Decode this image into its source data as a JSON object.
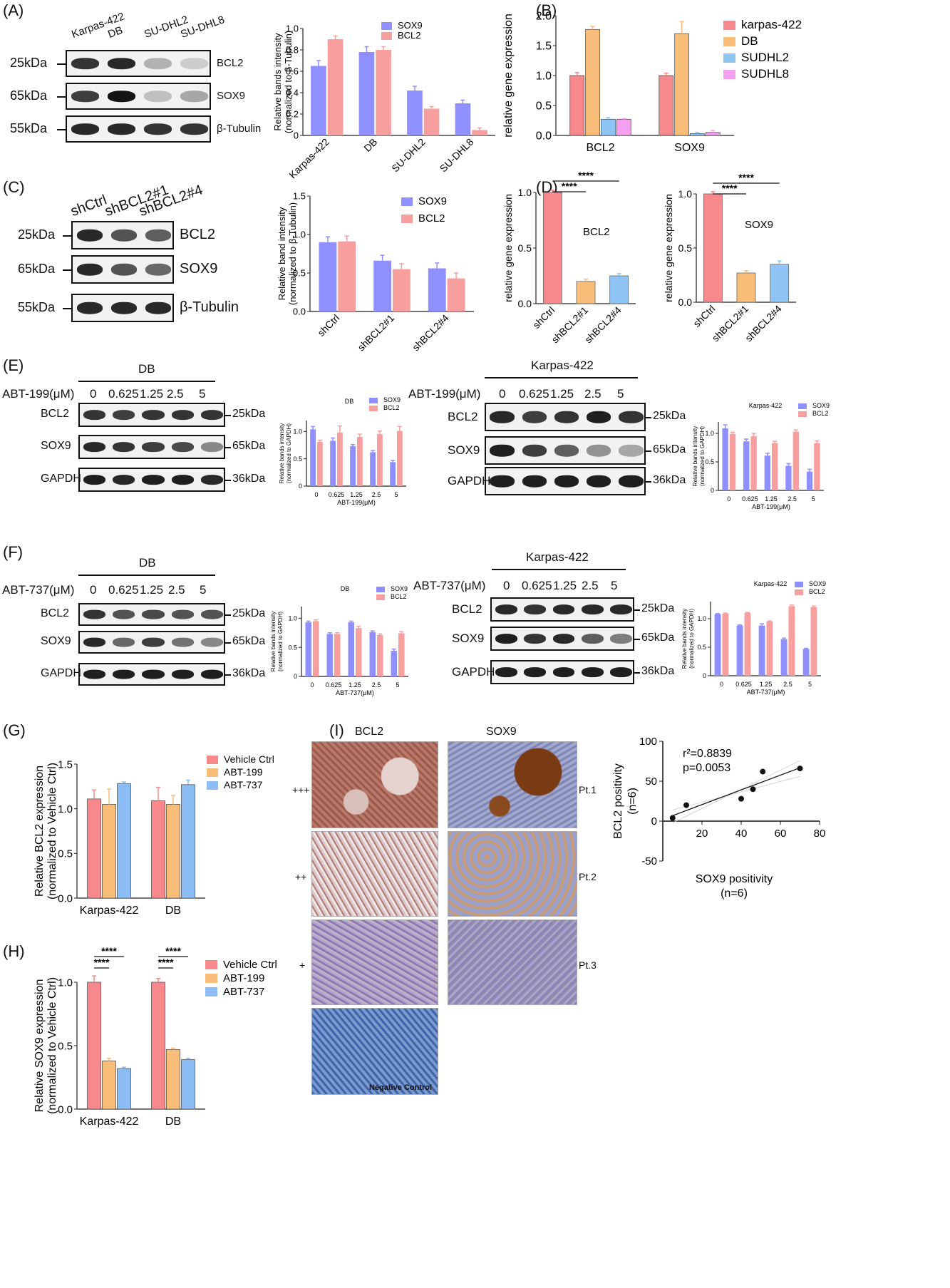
{
  "panels": {
    "A": {
      "letter": "(A)",
      "lanes": [
        "Karpas-422",
        "DB",
        "SU-DHL2",
        "SU-DHL8"
      ],
      "blots": [
        {
          "size": "25kDa",
          "protein": "BCL2",
          "intensity": [
            0.85,
            0.9,
            0.25,
            0.12
          ]
        },
        {
          "size": "65kDa",
          "protein": "SOX9",
          "intensity": [
            0.8,
            1.0,
            0.18,
            0.3
          ]
        },
        {
          "size": "55kDa",
          "protein": "β-Tubulin",
          "intensity": [
            0.9,
            0.9,
            0.85,
            0.85
          ]
        }
      ]
    },
    "B": {
      "letter": "(B)"
    },
    "C": {
      "letter": "(C)",
      "lanes": [
        "shCtrl",
        "shBCL2#1",
        "shBCL2#4"
      ],
      "blots": [
        {
          "size": "25kDa",
          "protein": "BCL2",
          "intensity": [
            0.9,
            0.7,
            0.65
          ]
        },
        {
          "size": "65kDa",
          "protein": "SOX9",
          "intensity": [
            0.9,
            0.7,
            0.6
          ]
        },
        {
          "size": "55kDa",
          "protein": "β-Tubulin",
          "intensity": [
            0.9,
            0.9,
            0.9
          ]
        }
      ]
    },
    "D": {
      "letter": "(D)"
    },
    "E": {
      "letter": "(E)",
      "left": {
        "cell": "DB",
        "drug": "ABT-199(μM)",
        "doses": [
          "0",
          "0.625",
          "1.25",
          "2.5",
          "5"
        ],
        "blots": [
          {
            "size": "25kDa",
            "protein": "BCL2",
            "intensity": [
              0.85,
              0.8,
              0.85,
              0.85,
              0.85
            ]
          },
          {
            "size": "65kDa",
            "protein": "SOX9",
            "intensity": [
              0.9,
              0.85,
              0.8,
              0.75,
              0.45
            ]
          },
          {
            "size": "36kDa",
            "protein": "GAPDH",
            "intensity": [
              0.95,
              0.9,
              0.95,
              0.95,
              0.9
            ]
          }
        ]
      },
      "right": {
        "cell": "Karpas-422",
        "drug": "ABT-199(μM)",
        "doses": [
          "0",
          "0.625",
          "1.25",
          "2.5",
          "5"
        ],
        "blots": [
          {
            "size": "25kDa",
            "protein": "BCL2",
            "intensity": [
              0.9,
              0.8,
              0.85,
              0.95,
              0.85
            ]
          },
          {
            "size": "65kDa",
            "protein": "SOX9",
            "intensity": [
              0.95,
              0.8,
              0.65,
              0.4,
              0.3
            ]
          },
          {
            "size": "36kDa",
            "protein": "GAPDH",
            "intensity": [
              0.95,
              0.95,
              0.95,
              0.95,
              0.95
            ]
          }
        ]
      }
    },
    "F": {
      "letter": "(F)",
      "left": {
        "cell": "DB",
        "drug": "ABT-737(μM)",
        "doses": [
          "0",
          "0.625",
          "1.25",
          "2.5",
          "5"
        ],
        "blots": [
          {
            "size": "25kDa",
            "protein": "BCL2",
            "intensity": [
              0.85,
              0.7,
              0.75,
              0.7,
              0.7
            ]
          },
          {
            "size": "65kDa",
            "protein": "SOX9",
            "intensity": [
              0.9,
              0.6,
              0.8,
              0.55,
              0.45
            ]
          },
          {
            "size": "36kDa",
            "protein": "GAPDH",
            "intensity": [
              0.95,
              0.95,
              0.95,
              0.95,
              0.95
            ]
          }
        ]
      },
      "right": {
        "cell": "Karpas-422",
        "drug": "ABT-737(μM)",
        "doses": [
          "0",
          "0.625",
          "1.25",
          "2.5",
          "5"
        ],
        "blots": [
          {
            "size": "25kDa",
            "protein": "BCL2",
            "intensity": [
              0.9,
              0.85,
              0.9,
              0.9,
              0.9
            ]
          },
          {
            "size": "65kDa",
            "protein": "SOX9",
            "intensity": [
              0.95,
              0.85,
              0.9,
              0.65,
              0.5
            ]
          },
          {
            "size": "36kDa",
            "protein": "GAPDH",
            "intensity": [
              0.95,
              0.95,
              0.95,
              0.95,
              0.95
            ]
          }
        ]
      }
    },
    "G": {
      "letter": "(G)"
    },
    "H": {
      "letter": "(H)"
    },
    "I": {
      "letter": "(I)",
      "columns": [
        "BCL2",
        "SOX9"
      ],
      "grades": [
        "+++",
        "++",
        "+"
      ],
      "patients": [
        "Pt.1",
        "Pt.2",
        "Pt.3"
      ],
      "negative": "Negative Control"
    }
  },
  "chart_data": [
    {
      "id": "A",
      "type": "bar",
      "categories": [
        "Karpas-422",
        "DB",
        "SU-DHL2",
        "SU-DHL8"
      ],
      "series": [
        {
          "name": "SOX9",
          "values": [
            0.65,
            0.78,
            0.42,
            0.3
          ],
          "err": [
            0.05,
            0.05,
            0.04,
            0.03
          ]
        },
        {
          "name": "BCL2",
          "values": [
            0.9,
            0.8,
            0.25,
            0.05
          ],
          "err": [
            0.03,
            0.03,
            0.02,
            0.02
          ]
        }
      ],
      "ylabel": "Relative bands intensity",
      "ylabel2": "(normalized to β-Tubulin)",
      "ylim": [
        0,
        1.0
      ],
      "yticks": [
        0,
        0.2,
        0.4,
        0.6,
        0.8,
        1.0
      ],
      "legend": "top-right"
    },
    {
      "id": "B",
      "type": "bar",
      "categories": [
        "BCL2",
        "SOX9"
      ],
      "series": [
        {
          "name": "karpas-422",
          "values": [
            1.0,
            1.0
          ],
          "err": [
            0.05,
            0.04
          ]
        },
        {
          "name": "DB",
          "values": [
            1.77,
            1.7
          ],
          "err": [
            0.05,
            0.2
          ]
        },
        {
          "name": "SUDHL2",
          "values": [
            0.27,
            0.03
          ],
          "err": [
            0.03,
            0.02
          ]
        },
        {
          "name": "SUDHL8",
          "values": [
            0.27,
            0.05
          ],
          "err": [
            0.01,
            0.03
          ]
        }
      ],
      "ylabel": "relative gene expression",
      "ylim": [
        0,
        2.0
      ],
      "yticks": [
        0.0,
        0.5,
        1.0,
        1.5,
        2.0
      ],
      "legend": "right"
    },
    {
      "id": "C",
      "type": "bar",
      "categories": [
        "shCtrl",
        "shBCL2#1",
        "shBCL2#4"
      ],
      "series": [
        {
          "name": "SOX9",
          "values": [
            0.9,
            0.66,
            0.56
          ],
          "err": [
            0.07,
            0.07,
            0.07
          ]
        },
        {
          "name": "BCL2",
          "values": [
            0.91,
            0.55,
            0.43
          ],
          "err": [
            0.07,
            0.07,
            0.07
          ]
        }
      ],
      "ylabel": "Relative band intensity",
      "ylabel2": "(normalized to β-Tubulin)",
      "ylim": [
        0,
        1.5
      ],
      "yticks": [
        0.0,
        0.5,
        1.0,
        1.5
      ],
      "legend": "top-right"
    },
    {
      "id": "D1",
      "type": "bar",
      "categories": [
        "shCtrl",
        "shBCL2#1",
        "shBCL2#4"
      ],
      "values": [
        1.0,
        0.2,
        0.25
      ],
      "err": [
        0.02,
        0.02,
        0.02
      ],
      "annotation": "BCL2",
      "ylabel": "relative gene expression",
      "ylim": [
        0,
        1.0
      ],
      "yticks": [
        0.0,
        0.5,
        1.0
      ],
      "sig": [
        "****",
        "****"
      ]
    },
    {
      "id": "D2",
      "type": "bar",
      "categories": [
        "shCtrl",
        "shBCL2#1",
        "shBCL2#4"
      ],
      "values": [
        1.0,
        0.27,
        0.35
      ],
      "err": [
        0.02,
        0.02,
        0.03
      ],
      "annotation": "SOX9",
      "ylabel": "relative gene expression",
      "ylim": [
        0,
        1.0
      ],
      "yticks": [
        0.0,
        0.5,
        1.0
      ],
      "sig": [
        "****",
        "****"
      ]
    },
    {
      "id": "E1",
      "type": "bar",
      "title": "DB",
      "categories": [
        "0",
        "0.625",
        "1.25",
        "2.5",
        "5"
      ],
      "series": [
        {
          "name": "SOX9",
          "values": [
            1.04,
            0.83,
            0.73,
            0.62,
            0.44
          ],
          "err": [
            0.05,
            0.05,
            0.03,
            0.03,
            0.03
          ]
        },
        {
          "name": "BCL2",
          "values": [
            0.81,
            0.98,
            0.9,
            0.95,
            1.01
          ],
          "err": [
            0.03,
            0.12,
            0.05,
            0.06,
            0.08
          ]
        }
      ],
      "xlabel": "ABT-199(μM)",
      "ylabel": "Relative bands intensity",
      "ylabel2": "(normalized to GAPDH)",
      "ylim": [
        0,
        1.2
      ],
      "yticks": [
        0,
        0.5,
        1.0
      ],
      "legend": "top-right"
    },
    {
      "id": "E2",
      "type": "bar",
      "title": "Karpas-422",
      "categories": [
        "0",
        "0.625",
        "1.25",
        "2.5",
        "5"
      ],
      "series": [
        {
          "name": "SOX9",
          "values": [
            1.09,
            0.86,
            0.61,
            0.43,
            0.33
          ],
          "err": [
            0.06,
            0.04,
            0.04,
            0.04,
            0.04
          ]
        },
        {
          "name": "BCL2",
          "values": [
            0.99,
            0.95,
            0.83,
            1.03,
            0.83
          ],
          "err": [
            0.03,
            0.05,
            0.03,
            0.03,
            0.04
          ]
        }
      ],
      "xlabel": "ABT-199(μM)",
      "ylabel": "Relative bands intensity",
      "ylabel2": "(normalized to GAPDH)",
      "ylim": [
        0,
        1.2
      ],
      "yticks": [
        0,
        0.5,
        1.0
      ],
      "legend": "top-right"
    },
    {
      "id": "F1",
      "type": "bar",
      "title": "DB",
      "categories": [
        "0",
        "0.625",
        "1.25",
        "2.5",
        "5"
      ],
      "series": [
        {
          "name": "SOX9",
          "values": [
            0.93,
            0.73,
            0.93,
            0.76,
            0.44
          ],
          "err": [
            0.02,
            0.02,
            0.02,
            0.02,
            0.03
          ]
        },
        {
          "name": "BCL2",
          "values": [
            0.95,
            0.73,
            0.83,
            0.71,
            0.74
          ],
          "err": [
            0.02,
            0.02,
            0.03,
            0.02,
            0.03
          ]
        }
      ],
      "xlabel": "ABT-737(μM)",
      "ylabel": "Relative bands intensity",
      "ylabel2": "(normalized to GAPDH)",
      "ylim": [
        0,
        1.2
      ],
      "yticks": [
        0,
        0.5,
        1.0
      ],
      "legend": "top-right"
    },
    {
      "id": "F2",
      "type": "bar",
      "title": "Karpas-422",
      "categories": [
        "0",
        "0.625",
        "1.25",
        "2.5",
        "5"
      ],
      "series": [
        {
          "name": "SOX9",
          "values": [
            1.08,
            0.88,
            0.88,
            0.64,
            0.47
          ],
          "err": [
            0.01,
            0.01,
            0.03,
            0.02,
            0.01
          ]
        },
        {
          "name": "BCL2",
          "values": [
            1.09,
            1.1,
            0.95,
            1.22,
            1.2
          ],
          "err": [
            0.01,
            0.01,
            0.01,
            0.02,
            0.02
          ]
        }
      ],
      "xlabel": "ABT-737(μM)",
      "ylabel": "Relative bands intensity",
      "ylabel2": "(normalized to GAPDH)",
      "ylim": [
        0,
        1.3
      ],
      "yticks": [
        0,
        0.5,
        1.0
      ],
      "legend": "top-right"
    },
    {
      "id": "G",
      "type": "bar",
      "categories": [
        "Karpas-422",
        "DB"
      ],
      "series": [
        {
          "name": "Vehicle Ctrl",
          "values": [
            1.11,
            1.09
          ],
          "err": [
            0.1,
            0.15
          ]
        },
        {
          "name": "ABT-199",
          "values": [
            1.05,
            1.05
          ],
          "err": [
            0.17,
            0.1
          ]
        },
        {
          "name": "ABT-737",
          "values": [
            1.28,
            1.27
          ],
          "err": [
            0.02,
            0.05
          ]
        }
      ],
      "ylabel": "Relative BCL2 expression",
      "ylabel2": "(normalized to Vehicle Ctrl)",
      "ylim": [
        0,
        1.5
      ],
      "yticks": [
        0.0,
        0.5,
        1.0,
        1.5
      ],
      "legend": "top-right"
    },
    {
      "id": "H",
      "type": "bar",
      "categories": [
        "Karpas-422",
        "DB"
      ],
      "series": [
        {
          "name": "Vehicle Ctrl",
          "values": [
            1.0,
            1.0
          ],
          "err": [
            0.05,
            0.03
          ]
        },
        {
          "name": "ABT-199",
          "values": [
            0.38,
            0.47
          ],
          "err": [
            0.02,
            0.01
          ]
        },
        {
          "name": "ABT-737",
          "values": [
            0.32,
            0.39
          ],
          "err": [
            0.01,
            0.01
          ]
        }
      ],
      "ylabel": "Relative SOX9 expression",
      "ylabel2": "(normalized to Vehicle Ctrl)",
      "ylim": [
        0,
        1.0
      ],
      "yticks": [
        0.0,
        0.5,
        1.0
      ],
      "legend": "top-right",
      "sig": [
        "****",
        "****",
        "****",
        "****"
      ]
    },
    {
      "id": "I",
      "type": "scatter",
      "x": [
        5,
        12,
        40,
        46,
        51,
        70
      ],
      "y": [
        4,
        20,
        28,
        40,
        62,
        66
      ],
      "xlabel": "SOX9 positivity",
      "xlabel2": "(n=6)",
      "ylabel": "BCL2  positivity",
      "ylabel2": "(n=6)",
      "xlim": [
        0,
        80
      ],
      "ylim": [
        -50,
        100
      ],
      "xticks": [
        20,
        40,
        60,
        80
      ],
      "yticks": [
        -50,
        0,
        50,
        100
      ],
      "annotation1": "r²=0.8839",
      "annotation2": "p=0.0053"
    }
  ]
}
